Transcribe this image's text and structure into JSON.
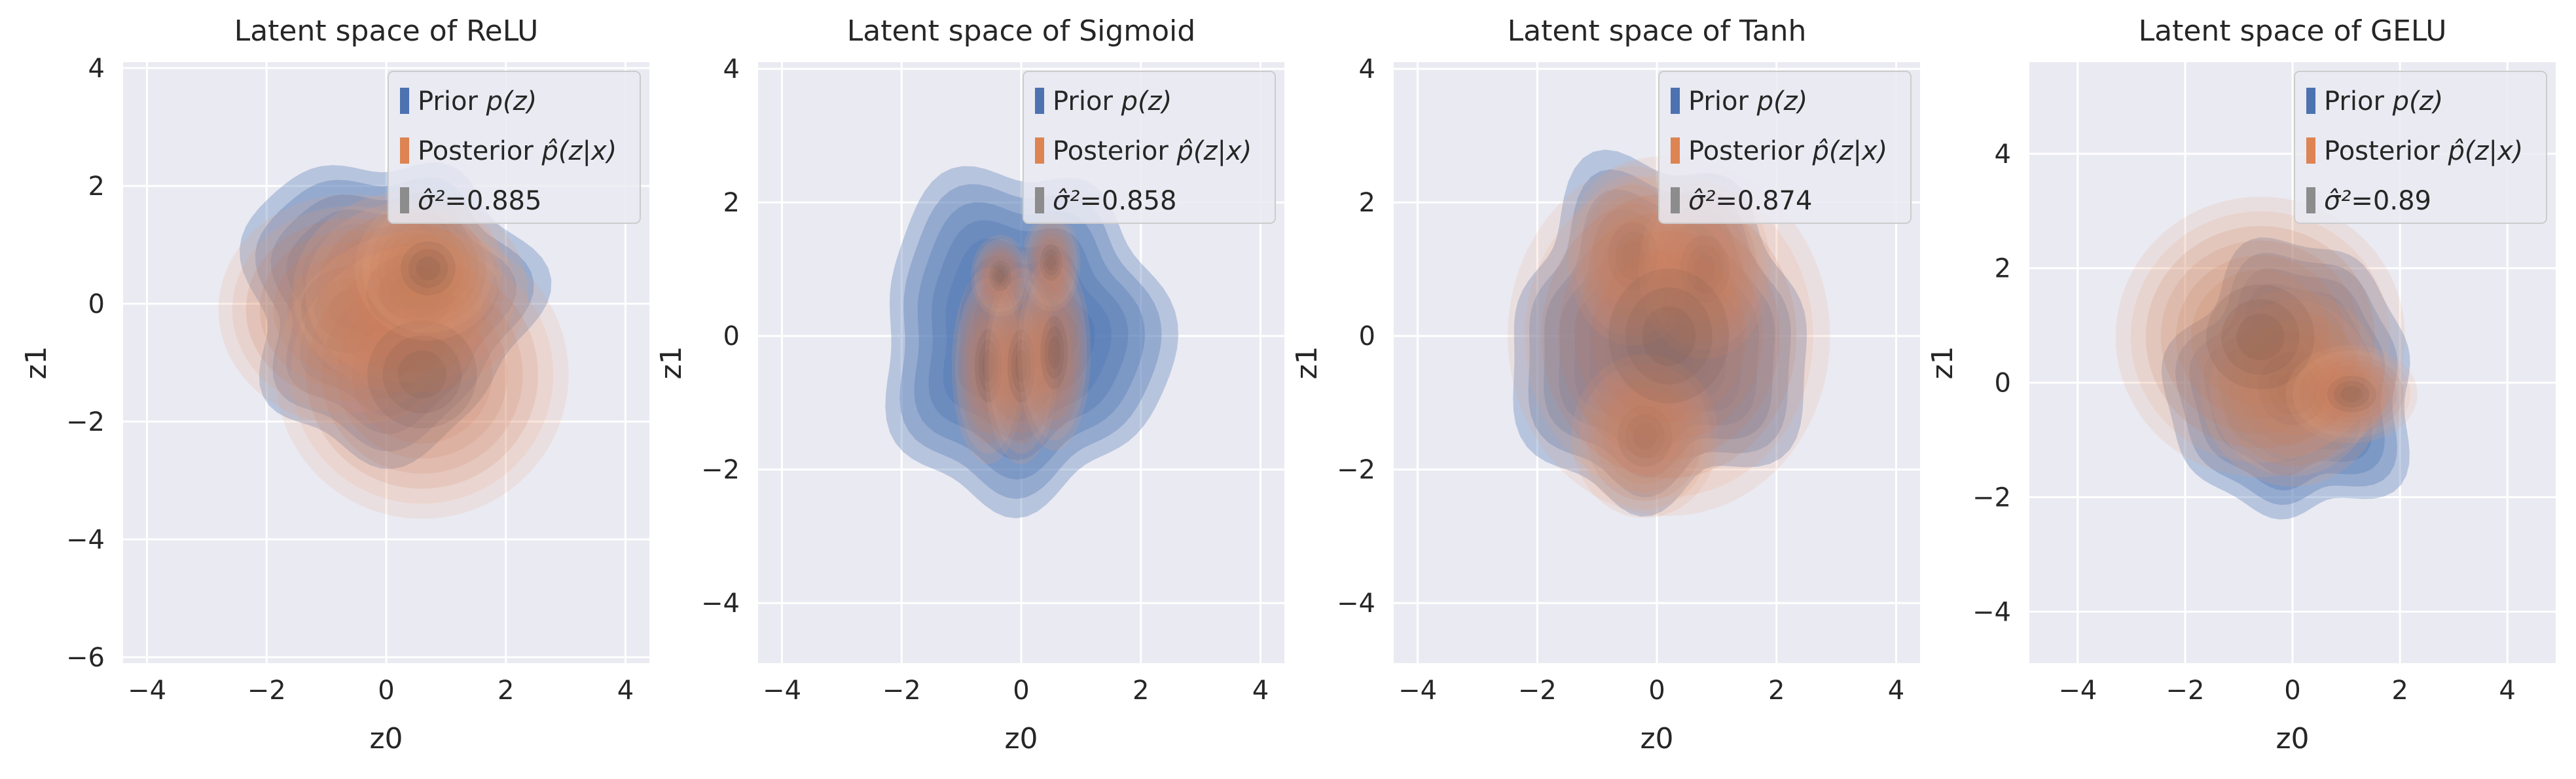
{
  "chart_data": [
    {
      "type": "kde-contour",
      "title": "Latent space of ReLU",
      "xlabel": "z0",
      "ylabel": "z1",
      "xlim": [
        -4.4,
        4.4
      ],
      "ylim": [
        -6.1,
        4.1
      ],
      "xticks": [
        -4,
        -2,
        0,
        2,
        4
      ],
      "yticks": [
        -6,
        -4,
        -2,
        0,
        2,
        4
      ],
      "legend": {
        "position": "top-right",
        "entries": [
          {
            "name": "prior",
            "prefix": "Prior ",
            "math": "p(z)",
            "color": "#4c72b0"
          },
          {
            "name": "posterior",
            "prefix": "Posterior ",
            "math": "p̂(z|x)",
            "color": "#dd8452"
          },
          {
            "name": "sigma",
            "prefix": "",
            "math": "σ̂²",
            "suffix": "=0.885",
            "color": "#8c8c8c"
          }
        ]
      },
      "sigma_sq": 0.885,
      "prior": {
        "center": [
          0,
          0
        ],
        "radius": 2.4
      },
      "posterior_components": [
        {
          "c": [
            -0.6,
            -0.1
          ],
          "s": [
            0.9,
            0.8
          ],
          "w": 1.0
        },
        {
          "c": [
            0.4,
            0.2
          ],
          "s": [
            0.8,
            0.7
          ],
          "w": 1.2
        },
        {
          "c": [
            0.6,
            -1.2
          ],
          "s": [
            1.0,
            1.0
          ],
          "w": 0.7
        },
        {
          "c": [
            0.7,
            0.6
          ],
          "s": [
            0.5,
            0.5
          ],
          "w": 0.8
        }
      ]
    },
    {
      "type": "kde-contour",
      "title": "Latent space of Sigmoid",
      "xlabel": "z0",
      "ylabel": "z1",
      "xlim": [
        -4.4,
        4.4
      ],
      "ylim": [
        -4.9,
        4.1
      ],
      "xticks": [
        -4,
        -2,
        0,
        2,
        4
      ],
      "yticks": [
        -4,
        -2,
        0,
        2,
        4
      ],
      "legend": {
        "position": "top-right",
        "entries": [
          {
            "name": "prior",
            "prefix": "Prior ",
            "math": "p(z)",
            "color": "#4c72b0"
          },
          {
            "name": "posterior",
            "prefix": "Posterior ",
            "math": "p̂(z|x)",
            "color": "#dd8452"
          },
          {
            "name": "sigma",
            "prefix": "",
            "math": "σ̂²",
            "suffix": "=0.858",
            "color": "#8c8c8c"
          }
        ]
      },
      "sigma_sq": 0.858,
      "prior": {
        "center": [
          0,
          0
        ],
        "radius": 2.4
      },
      "posterior_components": [
        {
          "c": [
            -0.55,
            -0.45
          ],
          "s": [
            0.25,
            0.6
          ],
          "w": 1.0
        },
        {
          "c": [
            0.0,
            -0.45
          ],
          "s": [
            0.25,
            0.6
          ],
          "w": 1.0
        },
        {
          "c": [
            0.55,
            -0.25
          ],
          "s": [
            0.25,
            0.6
          ],
          "w": 1.0
        },
        {
          "c": [
            -0.35,
            0.9
          ],
          "s": [
            0.2,
            0.25
          ],
          "w": 0.6
        },
        {
          "c": [
            0.5,
            1.1
          ],
          "s": [
            0.2,
            0.3
          ],
          "w": 0.6
        }
      ]
    },
    {
      "type": "kde-contour",
      "title": "Latent space of Tanh",
      "xlabel": "z0",
      "ylabel": "z1",
      "xlim": [
        -4.4,
        4.4
      ],
      "ylim": [
        -4.9,
        4.1
      ],
      "xticks": [
        -4,
        -2,
        0,
        2,
        4
      ],
      "yticks": [
        -4,
        -2,
        0,
        2,
        4
      ],
      "legend": {
        "position": "top-right",
        "entries": [
          {
            "name": "prior",
            "prefix": "Prior ",
            "math": "p(z)",
            "color": "#4c72b0"
          },
          {
            "name": "posterior",
            "prefix": "Posterior ",
            "math": "p̂(z|x)",
            "color": "#dd8452"
          },
          {
            "name": "sigma",
            "prefix": "",
            "math": "σ̂²",
            "suffix": "=0.874",
            "color": "#8c8c8c"
          }
        ]
      },
      "sigma_sq": 0.874,
      "prior": {
        "center": [
          0,
          0
        ],
        "radius": 2.4
      },
      "posterior_components": [
        {
          "c": [
            -0.4,
            1.2
          ],
          "s": [
            0.45,
            0.55
          ],
          "w": 1.0
        },
        {
          "c": [
            0.8,
            1.0
          ],
          "s": [
            0.45,
            0.55
          ],
          "w": 1.0
        },
        {
          "c": [
            -0.2,
            -1.5
          ],
          "s": [
            0.5,
            0.5
          ],
          "w": 0.9
        },
        {
          "c": [
            0.2,
            0.0
          ],
          "s": [
            1.1,
            1.1
          ],
          "w": 0.7
        }
      ]
    },
    {
      "type": "kde-contour",
      "title": "Latent space of GELU",
      "xlabel": "z0",
      "ylabel": "z1",
      "xlim": [
        -4.9,
        4.9
      ],
      "ylim": [
        -4.9,
        5.6
      ],
      "xticks": [
        -4,
        -2,
        0,
        2,
        4
      ],
      "yticks": [
        -4,
        -2,
        0,
        2,
        4
      ],
      "legend": {
        "position": "top-right",
        "entries": [
          {
            "name": "prior",
            "prefix": "Prior ",
            "math": "p(z)",
            "color": "#4c72b0"
          },
          {
            "name": "posterior",
            "prefix": "Posterior ",
            "math": "p̂(z|x)",
            "color": "#dd8452"
          },
          {
            "name": "sigma",
            "prefix": "",
            "math": "σ̂²",
            "suffix": "=0.89",
            "color": "#8c8c8c"
          }
        ]
      },
      "sigma_sq": 0.89,
      "prior": {
        "center": [
          0,
          0
        ],
        "radius": 2.4
      },
      "posterior_components": [
        {
          "c": [
            0.0,
            -0.1
          ],
          "s": [
            0.7,
            0.7
          ],
          "w": 1.2
        },
        {
          "c": [
            -0.6,
            0.8
          ],
          "s": [
            1.1,
            1.0
          ],
          "w": 0.8
        },
        {
          "c": [
            1.1,
            -0.2
          ],
          "s": [
            0.5,
            0.35
          ],
          "w": 0.7
        }
      ]
    }
  ]
}
